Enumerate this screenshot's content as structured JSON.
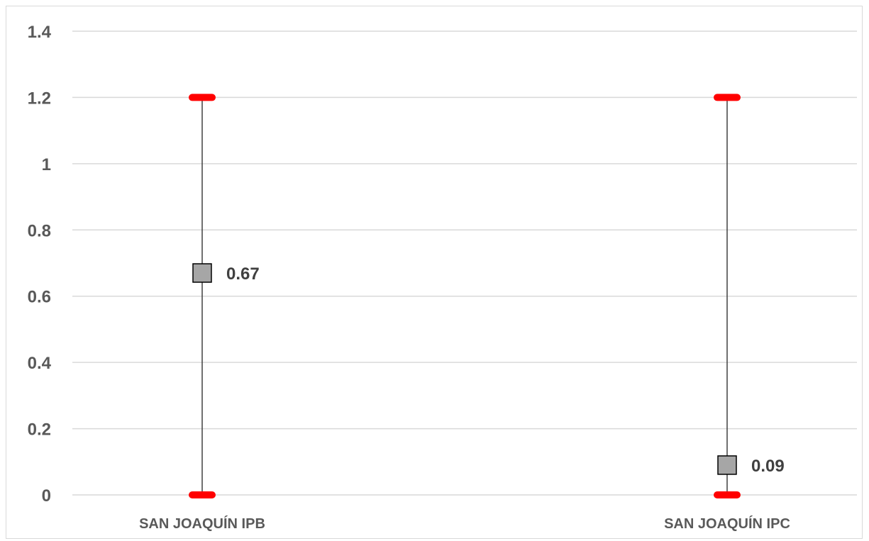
{
  "chart_data": {
    "type": "scatter",
    "title": "",
    "xlabel": "",
    "ylabel": "",
    "categories": [
      "SAN JOAQUÍN IPB",
      "SAN JOAQUÍN IPC"
    ],
    "ylim": [
      0,
      1.4
    ],
    "yticks": [
      "0",
      "0.2",
      "0.4",
      "0.6",
      "0.8",
      "1",
      "1.2",
      "1.4"
    ],
    "grid": true,
    "legend": "none",
    "series": [
      {
        "values": [
          0.67,
          0.09
        ],
        "labels": [
          "0.67",
          "0.09"
        ]
      }
    ],
    "ranges": [
      {
        "low": 0,
        "high": 1.2
      },
      {
        "low": 0,
        "high": 1.2
      }
    ],
    "colors": {
      "marker_fill": "#a6a6a6",
      "marker_stroke": "#000000",
      "range_line": "#404040",
      "range_cap": "#ff0000",
      "grid": "#d9d9d9",
      "axis_text": "#595959"
    }
  }
}
